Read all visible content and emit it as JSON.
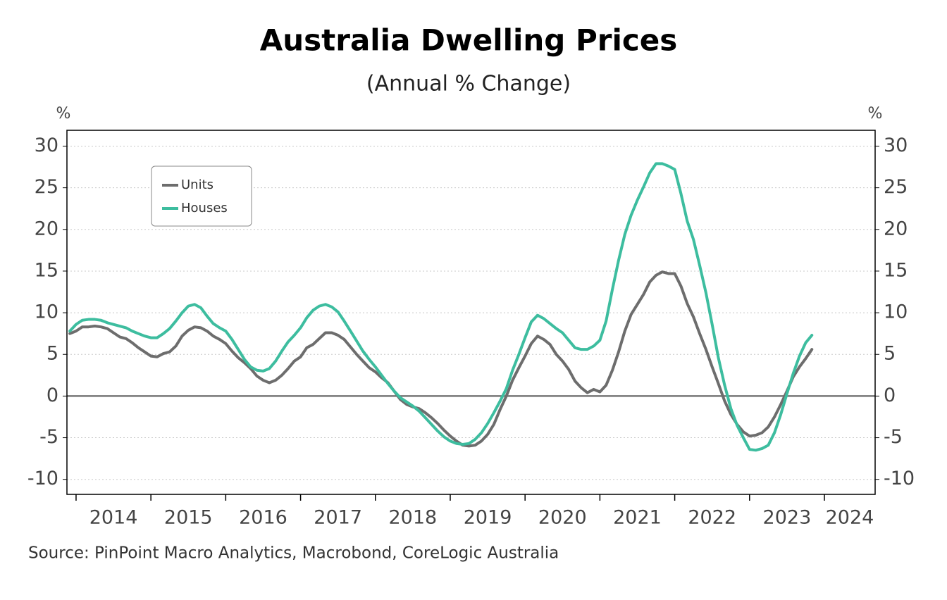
{
  "chart_data": {
    "type": "line",
    "title": "Australia Dwelling Prices",
    "subtitle": "(Annual % Change)",
    "source": "Source: PinPoint Macro Analytics, Macrobond, CoreLogic Australia",
    "y_label": "%",
    "y2_label": "%",
    "xlim": [
      2013.878,
      2024.678
    ],
    "xticks": [
      2014,
      2015,
      2016,
      2017,
      2018,
      2019,
      2020,
      2021,
      2022,
      2023,
      2024
    ],
    "ylim": [
      -11.8,
      31.9
    ],
    "yticks": [
      -10,
      -5,
      0,
      5,
      10,
      15,
      20,
      25,
      30
    ],
    "y2lim": [
      -11.8,
      31.9
    ],
    "y2ticks": [
      -10,
      -5,
      0,
      5,
      10,
      15,
      20,
      25,
      30
    ],
    "grid": true,
    "legend": "upper left",
    "x": [
      2013.917,
      2014.0,
      2014.083,
      2014.167,
      2014.25,
      2014.333,
      2014.417,
      2014.5,
      2014.583,
      2014.667,
      2014.75,
      2014.833,
      2014.917,
      2015.0,
      2015.083,
      2015.167,
      2015.25,
      2015.333,
      2015.417,
      2015.5,
      2015.583,
      2015.667,
      2015.75,
      2015.833,
      2015.917,
      2016.0,
      2016.083,
      2016.167,
      2016.25,
      2016.333,
      2016.417,
      2016.5,
      2016.583,
      2016.667,
      2016.75,
      2016.833,
      2016.917,
      2017.0,
      2017.083,
      2017.167,
      2017.25,
      2017.333,
      2017.417,
      2017.5,
      2017.583,
      2017.667,
      2017.75,
      2017.833,
      2017.917,
      2018.0,
      2018.083,
      2018.167,
      2018.25,
      2018.333,
      2018.417,
      2018.5,
      2018.583,
      2018.667,
      2018.75,
      2018.833,
      2018.917,
      2019.0,
      2019.083,
      2019.167,
      2019.25,
      2019.333,
      2019.417,
      2019.5,
      2019.583,
      2019.667,
      2019.75,
      2019.833,
      2019.917,
      2020.0,
      2020.083,
      2020.167,
      2020.25,
      2020.333,
      2020.417,
      2020.5,
      2020.583,
      2020.667,
      2020.75,
      2020.833,
      2020.917,
      2021.0,
      2021.083,
      2021.167,
      2021.25,
      2021.333,
      2021.417,
      2021.5,
      2021.583,
      2021.667,
      2021.75,
      2021.833,
      2021.917,
      2022.0,
      2022.083,
      2022.167,
      2022.25,
      2022.333,
      2022.417,
      2022.5,
      2022.583,
      2022.667,
      2022.75,
      2022.833,
      2022.917,
      2023.0,
      2023.083,
      2023.167,
      2023.25,
      2023.333,
      2023.417,
      2023.5,
      2023.583,
      2023.667,
      2023.75,
      2023.833
    ],
    "series": [
      {
        "name": "Units",
        "color": "#6d6d6d",
        "values": [
          7.5,
          7.8,
          8.3,
          8.3,
          8.4,
          8.3,
          8.1,
          7.6,
          7.1,
          6.9,
          6.4,
          5.8,
          5.3,
          4.8,
          4.7,
          5.1,
          5.3,
          6.0,
          7.2,
          7.9,
          8.3,
          8.2,
          7.8,
          7.2,
          6.8,
          6.3,
          5.4,
          4.6,
          4.0,
          3.3,
          2.4,
          1.9,
          1.6,
          1.9,
          2.5,
          3.3,
          4.2,
          4.7,
          5.8,
          6.2,
          6.9,
          7.6,
          7.6,
          7.3,
          6.8,
          5.9,
          5.0,
          4.2,
          3.4,
          2.9,
          2.2,
          1.6,
          0.6,
          -0.4,
          -1.0,
          -1.3,
          -1.5,
          -2.0,
          -2.6,
          -3.3,
          -4.1,
          -4.8,
          -5.4,
          -5.9,
          -6.0,
          -5.9,
          -5.4,
          -4.6,
          -3.4,
          -1.6,
          0.0,
          1.9,
          3.4,
          4.8,
          6.3,
          7.2,
          6.8,
          6.2,
          5.0,
          4.2,
          3.2,
          1.8,
          1.0,
          0.4,
          0.8,
          0.5,
          1.3,
          3.1,
          5.3,
          7.8,
          9.8,
          11.0,
          12.2,
          13.7,
          14.5,
          14.9,
          14.7,
          14.7,
          13.2,
          11.1,
          9.5,
          7.5,
          5.6,
          3.5,
          1.5,
          -0.6,
          -2.2,
          -3.4,
          -4.3,
          -4.8,
          -4.7,
          -4.4,
          -3.7,
          -2.5,
          -1.0,
          0.6,
          2.3,
          3.5,
          4.5,
          5.6
        ]
      },
      {
        "name": "Houses",
        "color": "#3dbd9f",
        "values": [
          7.8,
          8.6,
          9.1,
          9.2,
          9.2,
          9.1,
          8.8,
          8.6,
          8.4,
          8.2,
          7.8,
          7.5,
          7.2,
          7.0,
          7.0,
          7.5,
          8.1,
          9.0,
          10.0,
          10.8,
          11.0,
          10.6,
          9.6,
          8.7,
          8.2,
          7.8,
          6.8,
          5.6,
          4.4,
          3.5,
          3.1,
          3.0,
          3.3,
          4.2,
          5.4,
          6.5,
          7.3,
          8.2,
          9.4,
          10.3,
          10.8,
          11.0,
          10.7,
          10.1,
          9.0,
          7.8,
          6.6,
          5.4,
          4.4,
          3.5,
          2.5,
          1.5,
          0.6,
          -0.2,
          -0.7,
          -1.2,
          -1.8,
          -2.6,
          -3.4,
          -4.2,
          -4.9,
          -5.4,
          -5.7,
          -5.8,
          -5.7,
          -5.2,
          -4.4,
          -3.3,
          -2.0,
          -0.6,
          0.9,
          3.1,
          5.0,
          7.0,
          8.9,
          9.7,
          9.3,
          8.7,
          8.1,
          7.6,
          6.7,
          5.8,
          5.6,
          5.6,
          6.0,
          6.7,
          9.0,
          12.8,
          16.3,
          19.4,
          21.7,
          23.5,
          25.1,
          26.8,
          27.9,
          27.9,
          27.6,
          27.2,
          24.3,
          21.0,
          18.8,
          15.7,
          12.4,
          8.6,
          4.6,
          1.3,
          -1.5,
          -3.5,
          -5.0,
          -6.4,
          -6.5,
          -6.3,
          -5.9,
          -4.4,
          -2.2,
          0.3,
          2.7,
          4.8,
          6.4,
          7.3
        ]
      }
    ]
  }
}
